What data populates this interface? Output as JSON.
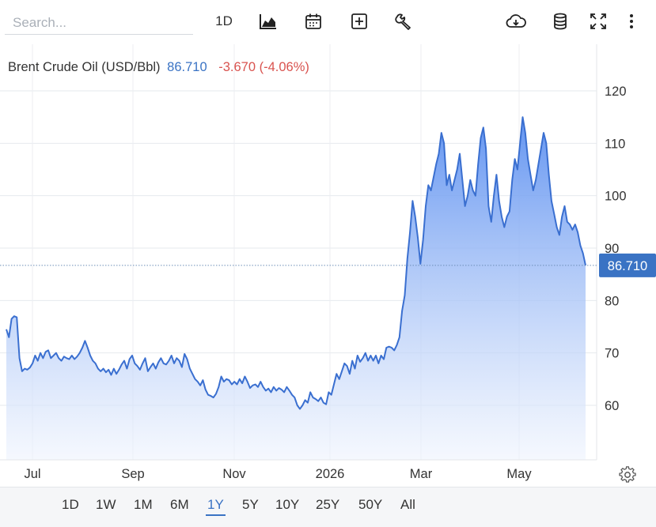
{
  "toolbar": {
    "search_placeholder": "Search...",
    "interval_label": "1D",
    "icons": [
      "chart-type-icon",
      "calendar-icon",
      "add-indicator-icon",
      "wrench-icon",
      "download-icon",
      "database-icon",
      "fullscreen-icon",
      "more-icon"
    ]
  },
  "legend": {
    "name": "Brent Crude Oil (USD/Bbl)",
    "price": "86.710",
    "change": "-3.670 (-4.06%)"
  },
  "colors": {
    "line": "#3a6fd0",
    "area_top": "#5b8ff0",
    "area_bottom": "#f2f5fd",
    "price_tag": "#3a73c4",
    "negative": "#d9534f"
  },
  "ranges": [
    "1D",
    "1W",
    "1M",
    "6M",
    "1Y",
    "5Y",
    "10Y",
    "25Y",
    "50Y",
    "All"
  ],
  "active_range": "1Y",
  "chart_data": {
    "type": "area",
    "title": "Brent Crude Oil (USD/Bbl)",
    "ylim": [
      50,
      125
    ],
    "yticks": [
      "60",
      "70",
      "80",
      "90",
      "100",
      "110",
      "120"
    ],
    "xtick_labels": [
      "Jul",
      "Sep",
      "Nov",
      "2026",
      "Mar",
      "May"
    ],
    "last_price_label": "86.710",
    "last_price": 86.71,
    "grid": true,
    "series": [
      {
        "values": [
          74.5,
          73.0,
          76.5,
          77.0,
          76.8,
          69.0,
          66.5,
          67.0,
          66.8,
          67.2,
          68.0,
          69.5,
          68.5,
          70.0,
          69.0,
          70.2,
          70.5,
          69.0,
          69.5,
          70.0,
          69.0,
          68.5,
          69.3,
          69.0,
          68.8,
          69.5,
          68.8,
          69.3,
          70.0,
          71.0,
          72.3,
          71.0,
          69.5,
          68.5,
          68.0,
          67.0,
          66.5,
          67.0,
          66.3,
          66.8,
          65.8,
          67.0,
          66.0,
          66.8,
          67.8,
          68.5,
          67.0,
          68.8,
          69.5,
          68.0,
          67.5,
          66.8,
          68.0,
          69.0,
          66.5,
          67.3,
          68.0,
          67.0,
          68.2,
          69.0,
          68.0,
          67.8,
          68.5,
          69.5,
          68.0,
          69.0,
          68.5,
          67.3,
          69.8,
          68.8,
          67.0,
          66.0,
          65.0,
          64.5,
          63.8,
          64.8,
          63.0,
          62.0,
          61.8,
          61.5,
          62.2,
          63.5,
          65.5,
          64.5,
          65.0,
          64.8,
          64.0,
          64.5,
          64.0,
          65.0,
          64.2,
          65.5,
          64.5,
          63.3,
          63.8,
          64.0,
          63.5,
          64.5,
          63.5,
          62.8,
          63.2,
          62.5,
          63.5,
          62.8,
          63.3,
          63.0,
          62.5,
          63.5,
          62.8,
          62.0,
          61.5,
          60.0,
          59.3,
          60.0,
          61.0,
          60.5,
          62.5,
          61.5,
          61.2,
          60.8,
          61.5,
          60.5,
          60.2,
          62.5,
          62.0,
          64.0,
          66.0,
          65.0,
          66.5,
          68.0,
          67.5,
          66.0,
          68.5,
          67.0,
          69.5,
          68.3,
          69.0,
          70.0,
          68.5,
          69.5,
          68.5,
          69.5,
          68.0,
          69.5,
          68.8,
          71.0,
          71.2,
          71.0,
          70.5,
          71.5,
          73.0,
          78.0,
          81.0,
          88.0,
          93.0,
          99.0,
          96.0,
          92.0,
          87.0,
          91.5,
          98.0,
          102.0,
          101.0,
          103.5,
          106.0,
          108.0,
          112.0,
          110.0,
          102.0,
          104.0,
          101.0,
          103.0,
          105.0,
          108.0,
          103.0,
          98.0,
          100.0,
          103.0,
          101.0,
          100.0,
          106.0,
          111.0,
          113.0,
          109.0,
          98.0,
          95.0,
          100.0,
          104.0,
          99.0,
          96.0,
          94.0,
          96.0,
          97.0,
          103.0,
          107.0,
          105.0,
          110.0,
          115.0,
          112.0,
          107.0,
          104.0,
          101.0,
          103.0,
          106.0,
          109.0,
          112.0,
          110.0,
          104.0,
          99.0,
          96.5,
          94.0,
          92.5,
          96.0,
          98.0,
          95.0,
          94.5,
          93.5,
          94.5,
          93.0,
          90.5,
          89.0,
          86.7
        ]
      }
    ]
  }
}
